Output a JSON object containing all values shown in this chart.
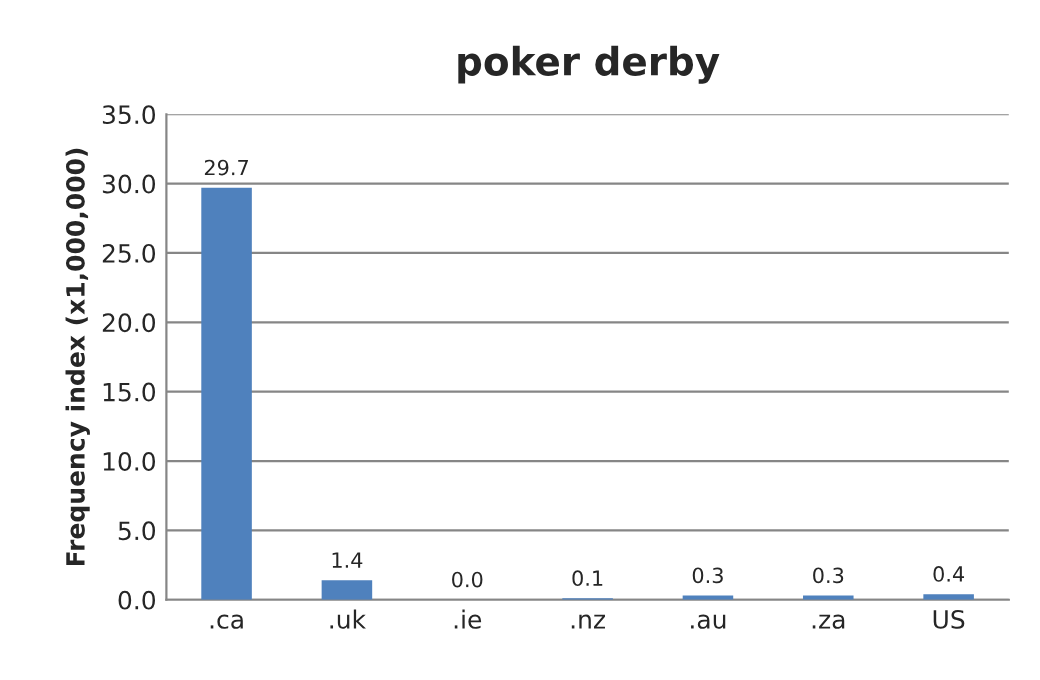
{
  "chart_data": {
    "type": "bar",
    "title": "poker derby",
    "ylabel": "Frequency index (x1,000,000)",
    "categories": [
      ".ca",
      ".uk",
      ".ie",
      ".nz",
      ".au",
      ".za",
      "US"
    ],
    "values": [
      29.7,
      1.4,
      0.0,
      0.1,
      0.3,
      0.3,
      0.4
    ],
    "color": "#4f81bd",
    "ylim": [
      0,
      35
    ],
    "yticks": [
      {
        "value": 0,
        "label": "0.0"
      },
      {
        "value": 5,
        "label": "5.0"
      },
      {
        "value": 10,
        "label": "10.0"
      },
      {
        "value": 15,
        "label": "15.0"
      },
      {
        "value": 20,
        "label": "20.0"
      },
      {
        "value": 25,
        "label": "25.0"
      },
      {
        "value": 30,
        "label": "30.0"
      },
      {
        "value": 35,
        "label": "35.0"
      }
    ],
    "value_labels": [
      "29.7",
      "1.4",
      "0.0",
      "0.1",
      "0.3",
      "0.3",
      "0.4"
    ],
    "grid": "y"
  }
}
